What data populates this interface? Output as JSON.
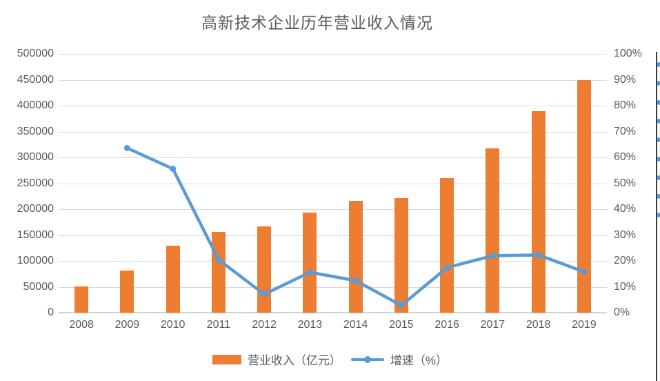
{
  "title": "高新技术企业历年营业收入情况",
  "colors": {
    "bar": "#ed7d31",
    "line": "#5b9bd5",
    "grid": "#d9d9d9",
    "axis_text": "#595959"
  },
  "legend": {
    "items": [
      {
        "label": "营业收入（亿元）",
        "type": "bar-swatch"
      },
      {
        "label": "增速（%）",
        "type": "line-swatch"
      }
    ]
  },
  "chart_data": {
    "type": "bar+line combo",
    "title": "高新技术企业历年营业收入情况",
    "categories": [
      "2008",
      "2009",
      "2010",
      "2011",
      "2012",
      "2013",
      "2014",
      "2015",
      "2016",
      "2017",
      "2018",
      "2019"
    ],
    "series": [
      {
        "name": "营业收入（亿元）",
        "type": "bar",
        "axis": "left",
        "values": [
          51000,
          82000,
          130000,
          156000,
          167000,
          193000,
          216000,
          222000,
          260000,
          318000,
          389000,
          450000
        ]
      },
      {
        "name": "增速（%）",
        "type": "line",
        "axis": "right",
        "values": [
          null,
          63.6,
          55.6,
          20.5,
          7.1,
          15.6,
          12.4,
          2.8,
          17.4,
          22.0,
          22.3,
          15.8
        ]
      }
    ],
    "left_axis": {
      "min": 0,
      "max": 500000,
      "step": 50000,
      "tick_labels": [
        "0",
        "50000",
        "100000",
        "150000",
        "200000",
        "250000",
        "300000",
        "350000",
        "400000",
        "450000",
        "500000"
      ]
    },
    "right_axis": {
      "min": 0,
      "max": 100,
      "step": 10,
      "tick_labels": [
        "0%",
        "10%",
        "20%",
        "30%",
        "40%",
        "50%",
        "60%",
        "70%",
        "80%",
        "90%",
        "100%"
      ]
    },
    "grid": true,
    "legend_position": "bottom"
  }
}
